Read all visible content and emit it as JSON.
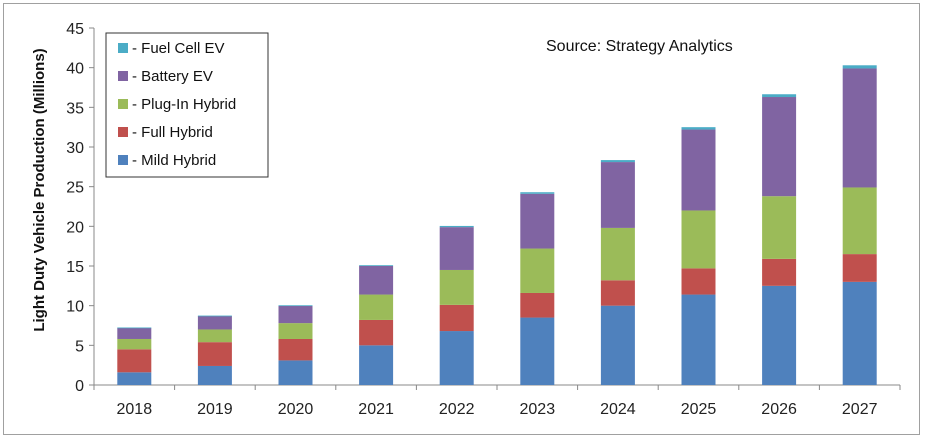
{
  "chart_data": {
    "type": "bar",
    "stacked": true,
    "categories": [
      "2018",
      "2019",
      "2020",
      "2021",
      "2022",
      "2023",
      "2024",
      "2025",
      "2026",
      "2027"
    ],
    "series": [
      {
        "name": "- Mild Hybrid",
        "color": "#4f81bd",
        "values": [
          1.6,
          2.4,
          3.1,
          5.0,
          6.8,
          8.5,
          10.0,
          11.4,
          12.5,
          13.0
        ]
      },
      {
        "name": "- Full Hybrid",
        "color": "#c0504d",
        "values": [
          2.9,
          3.0,
          2.7,
          3.2,
          3.3,
          3.1,
          3.2,
          3.3,
          3.4,
          3.5
        ]
      },
      {
        "name": "- Plug-In Hybrid",
        "color": "#9bbb59",
        "values": [
          1.3,
          1.6,
          2.0,
          3.2,
          4.4,
          5.6,
          6.6,
          7.3,
          7.9,
          8.4
        ]
      },
      {
        "name": "- Battery EV",
        "color": "#8064a2",
        "values": [
          1.4,
          1.7,
          2.2,
          3.6,
          5.4,
          6.9,
          8.3,
          10.2,
          12.5,
          15.0
        ]
      },
      {
        "name": "- Fuel Cell EV",
        "color": "#4bacc6",
        "values": [
          0.05,
          0.05,
          0.05,
          0.1,
          0.15,
          0.2,
          0.25,
          0.3,
          0.35,
          0.4
        ]
      }
    ],
    "ylabel": "Light Duty Vehicle Production (Millions)",
    "ylim": [
      0,
      45
    ],
    "yticks": [
      0,
      5,
      10,
      15,
      20,
      25,
      30,
      35,
      40,
      45
    ],
    "annotation": "Source: Strategy Analytics",
    "legend_order": [
      4,
      3,
      2,
      1,
      0
    ],
    "legend_position": "top-left",
    "grid": false
  }
}
